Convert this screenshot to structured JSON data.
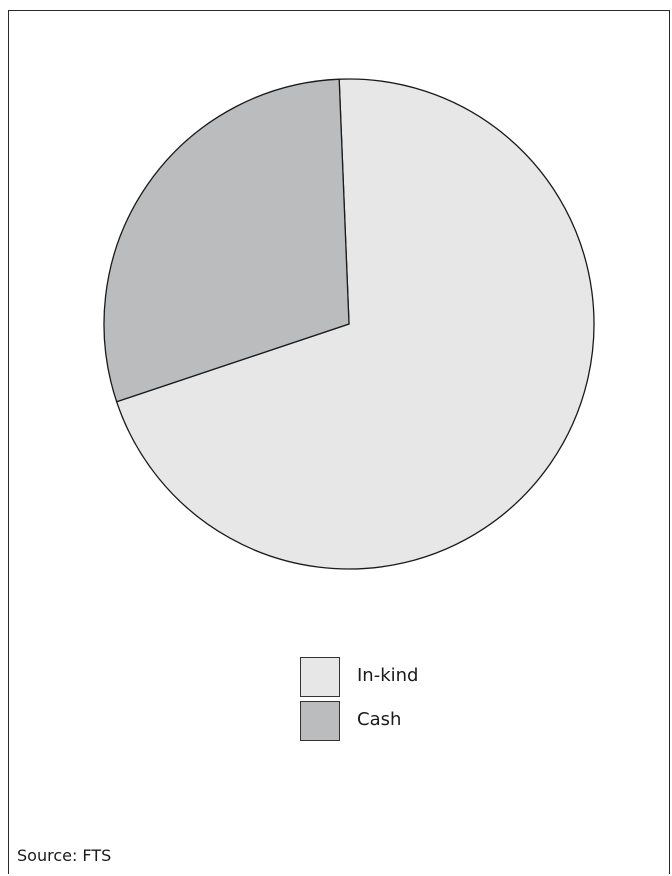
{
  "chart_data": {
    "type": "pie",
    "slices": [
      {
        "label": "In-kind",
        "value": 70.5,
        "color": "#e7e7e8"
      },
      {
        "label": "Cash",
        "value": 29.5,
        "color": "#bbbcbe"
      }
    ],
    "legend_position": "bottom-center",
    "source": "Source: FTS"
  }
}
